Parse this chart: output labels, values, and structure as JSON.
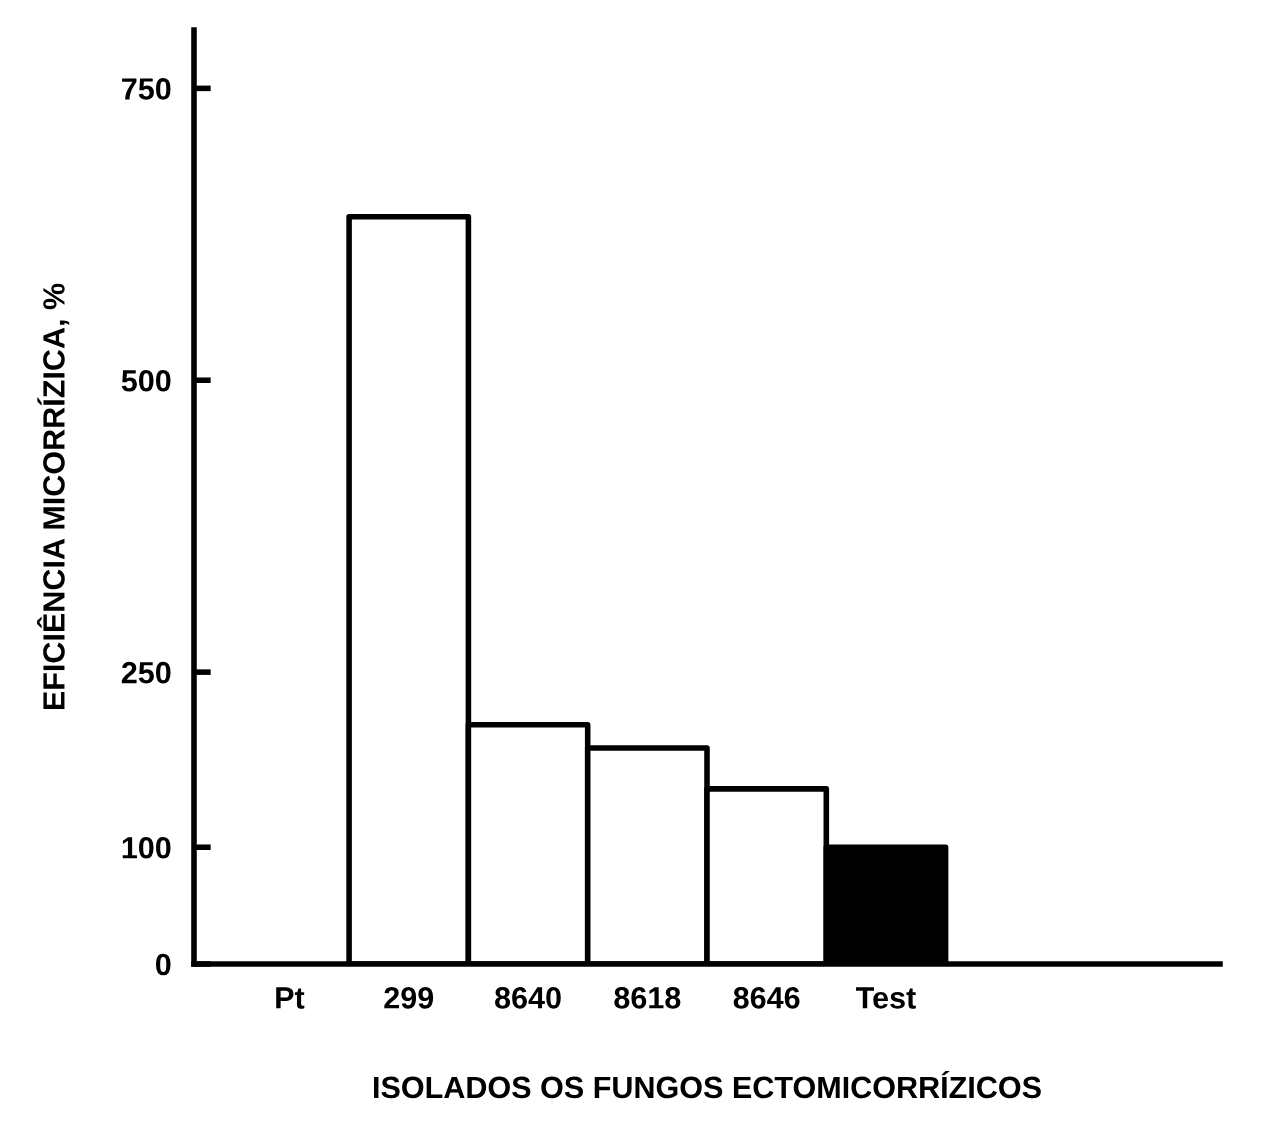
{
  "chart_data": {
    "type": "bar",
    "xlabel": "ISOLADOS OS FUNGOS ECTOMICORRÍZICOS",
    "ylabel": "EFICIÊNCIA MICORRÍZICA, %",
    "categories": [
      "Pt",
      "299",
      "8640",
      "8618",
      "8646",
      "Test"
    ],
    "values": [
      null,
      640,
      205,
      185,
      150,
      100
    ],
    "colors": [
      "#ffffff",
      "#ffffff",
      "#ffffff",
      "#ffffff",
      "#ffffff",
      "#000000"
    ],
    "ylim": [
      0,
      800
    ],
    "yticks": [
      0,
      100,
      250,
      500,
      750
    ],
    "grid": false,
    "legend": false
  }
}
